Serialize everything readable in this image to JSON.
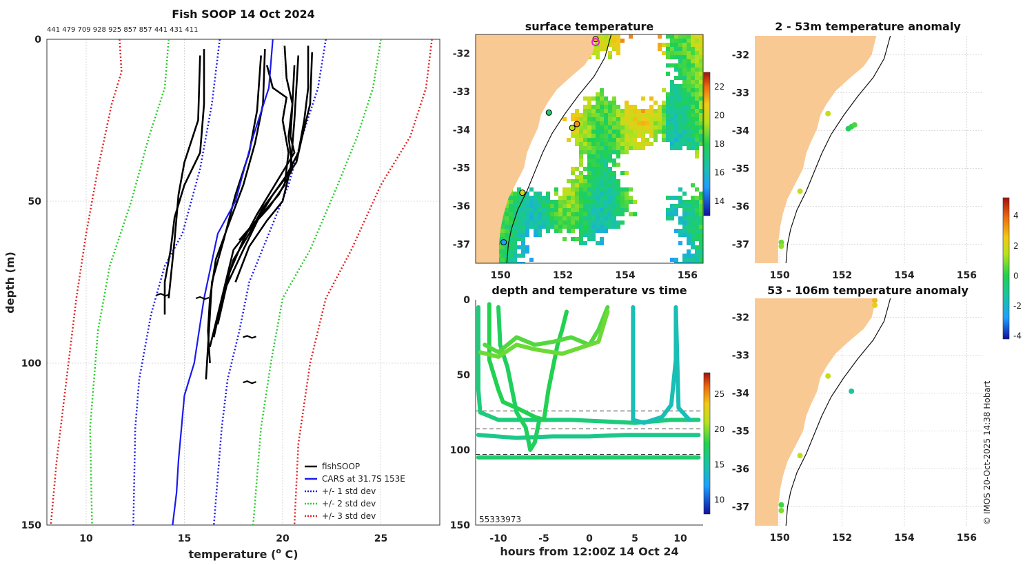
{
  "colors": {
    "land": "#f9c993",
    "red": "#e02020",
    "green": "#22cc22",
    "blue": "#1a1aee",
    "black": "#000000",
    "gray": "#cccccc"
  },
  "chart_data": [
    {
      "id": "profile",
      "type": "line",
      "title": "Fish SOOP 14 Oct 2024",
      "subtitle": "441 479 709 928 925 857 857 441 431 411",
      "xlabel": "temperature (",
      "xlabel_sup": "o",
      "xlabel_end": " C)",
      "ylabel": "depth (m)",
      "xlim": [
        8,
        28
      ],
      "ylim": [
        150,
        0
      ],
      "xticks": [
        "10",
        "15",
        "20",
        "25"
      ],
      "yticks": [
        "0",
        "50",
        "100",
        "150"
      ],
      "legend": [
        "fishSOOP",
        "CARS at 31.7S 153E",
        "+/- 1 std dev",
        "+/- 2 std dev",
        "+/- 3 std dev"
      ],
      "cars_mean": [
        [
          19.5,
          0
        ],
        [
          19.3,
          15
        ],
        [
          18.5,
          30
        ],
        [
          17.6,
          50
        ],
        [
          16.7,
          60
        ],
        [
          16.0,
          80
        ],
        [
          15.5,
          100
        ],
        [
          15.0,
          110
        ],
        [
          14.7,
          130
        ],
        [
          14.6,
          140
        ],
        [
          14.4,
          150
        ]
      ],
      "std1_minus": [
        [
          16.8,
          0
        ],
        [
          16.4,
          20
        ],
        [
          15.8,
          40
        ],
        [
          14.9,
          60
        ],
        [
          14.0,
          70
        ],
        [
          13.3,
          85
        ],
        [
          12.7,
          105
        ],
        [
          12.5,
          120
        ],
        [
          12.4,
          150
        ]
      ],
      "std1_plus": [
        [
          22.2,
          0
        ],
        [
          21.8,
          15
        ],
        [
          21.0,
          30
        ],
        [
          20.3,
          45
        ],
        [
          19.3,
          60
        ],
        [
          18.3,
          75
        ],
        [
          17.8,
          90
        ],
        [
          17.2,
          105
        ],
        [
          16.9,
          120
        ],
        [
          16.5,
          150
        ]
      ],
      "std2_minus": [
        [
          14.2,
          0
        ],
        [
          14.0,
          15
        ],
        [
          13.2,
          30
        ],
        [
          12.3,
          50
        ],
        [
          11.2,
          70
        ],
        [
          10.6,
          90
        ],
        [
          10.2,
          120
        ],
        [
          10.3,
          150
        ]
      ],
      "std2_plus": [
        [
          25.0,
          0
        ],
        [
          24.6,
          15
        ],
        [
          23.8,
          30
        ],
        [
          22.8,
          45
        ],
        [
          21.4,
          65
        ],
        [
          20.0,
          80
        ],
        [
          19.4,
          100
        ],
        [
          18.9,
          120
        ],
        [
          18.5,
          150
        ]
      ],
      "std3_minus": [
        [
          11.7,
          0
        ],
        [
          11.8,
          10
        ],
        [
          11.3,
          20
        ],
        [
          10.6,
          40
        ],
        [
          10.0,
          60
        ],
        [
          9.5,
          80
        ],
        [
          9.0,
          105
        ],
        [
          8.5,
          130
        ],
        [
          8.2,
          150
        ]
      ],
      "std3_plus": [
        [
          27.6,
          0
        ],
        [
          27.3,
          15
        ],
        [
          26.5,
          30
        ],
        [
          25.0,
          45
        ],
        [
          23.5,
          65
        ],
        [
          22.2,
          80
        ],
        [
          21.4,
          100
        ],
        [
          20.8,
          125
        ],
        [
          20.6,
          150
        ]
      ],
      "fish_profiles": [
        [
          [
            16.0,
            3
          ],
          [
            16.0,
            20
          ],
          [
            15.8,
            35
          ],
          [
            15.0,
            45
          ],
          [
            14.5,
            55
          ],
          [
            14.3,
            65
          ],
          [
            14.0,
            75
          ],
          [
            14.0,
            85
          ]
        ],
        [
          [
            15.8,
            5
          ],
          [
            15.7,
            25
          ],
          [
            15.0,
            38
          ],
          [
            14.7,
            48
          ],
          [
            14.5,
            62
          ],
          [
            14.2,
            80
          ]
        ],
        [
          [
            19.1,
            3
          ],
          [
            19.0,
            20
          ],
          [
            18.6,
            32
          ],
          [
            18.0,
            45
          ],
          [
            17.2,
            58
          ],
          [
            16.6,
            68
          ],
          [
            16.3,
            80
          ],
          [
            16.2,
            90
          ],
          [
            16.3,
            100
          ]
        ],
        [
          [
            18.9,
            5
          ],
          [
            18.7,
            22
          ],
          [
            18.3,
            35
          ],
          [
            17.6,
            48
          ],
          [
            17.0,
            62
          ],
          [
            16.4,
            75
          ],
          [
            16.2,
            95
          ],
          [
            16.1,
            105
          ]
        ],
        [
          [
            19.2,
            8
          ],
          [
            19.5,
            15
          ],
          [
            20.2,
            18
          ],
          [
            20.0,
            25
          ],
          [
            20.3,
            35
          ],
          [
            20.1,
            45
          ],
          [
            19.3,
            52
          ],
          [
            18.4,
            58
          ],
          [
            17.5,
            65
          ],
          [
            16.9,
            80
          ],
          [
            16.3,
            95
          ]
        ],
        [
          [
            20.1,
            2
          ],
          [
            20.2,
            12
          ],
          [
            20.5,
            20
          ],
          [
            20.4,
            30
          ],
          [
            20.6,
            35
          ],
          [
            20.1,
            40
          ],
          [
            19.5,
            46
          ],
          [
            18.7,
            54
          ],
          [
            18.0,
            62
          ],
          [
            17.3,
            72
          ],
          [
            16.7,
            88
          ]
        ],
        [
          [
            20.6,
            8
          ],
          [
            20.5,
            20
          ],
          [
            20.3,
            30
          ],
          [
            20.5,
            40
          ],
          [
            19.8,
            48
          ],
          [
            18.8,
            55
          ],
          [
            18.0,
            65
          ],
          [
            17.0,
            78
          ],
          [
            16.5,
            92
          ]
        ],
        [
          [
            21.5,
            4
          ],
          [
            21.4,
            20
          ],
          [
            21.0,
            30
          ],
          [
            20.7,
            38
          ],
          [
            20.0,
            44
          ],
          [
            19.0,
            52
          ],
          [
            18.3,
            60
          ],
          [
            17.5,
            68
          ],
          [
            16.9,
            80
          ]
        ],
        [
          [
            21.3,
            2
          ],
          [
            21.3,
            15
          ],
          [
            21.1,
            25
          ],
          [
            20.8,
            35
          ],
          [
            20.2,
            42
          ],
          [
            19.5,
            48
          ],
          [
            18.8,
            55
          ],
          [
            17.8,
            62
          ]
        ],
        [
          [
            20.8,
            5
          ],
          [
            20.6,
            25
          ],
          [
            20.4,
            40
          ],
          [
            20.0,
            50
          ],
          [
            19.2,
            56
          ],
          [
            18.3,
            64
          ],
          [
            17.6,
            75
          ]
        ]
      ],
      "fish_blobs": [
        [
          18.3,
          92
        ],
        [
          18.3,
          106
        ],
        [
          15.9,
          80
        ],
        [
          13.9,
          79
        ]
      ]
    },
    {
      "id": "sst",
      "type": "heatmap",
      "title": "surface temperature",
      "xticks": [
        "150",
        "152",
        "154",
        "156"
      ],
      "yticks": [
        "-32",
        "-33",
        "-34",
        "-35",
        "-36",
        "-37"
      ],
      "xlim": [
        149.2,
        156.5
      ],
      "ylim": [
        -37.5,
        -31.5
      ],
      "colorbar": {
        "range": [
          13,
          23
        ],
        "ticks": [
          "14",
          "16",
          "18",
          "20",
          "22"
        ]
      },
      "stations": [
        {
          "lon": 153.05,
          "lat": -31.62,
          "temp": 21.0
        },
        {
          "lon": 151.55,
          "lat": -33.55,
          "temp": 17.5
        },
        {
          "lon": 152.3,
          "lat": -33.95,
          "temp": 19.5
        },
        {
          "lon": 152.45,
          "lat": -33.85,
          "temp": 21.5
        },
        {
          "lon": 150.7,
          "lat": -35.65,
          "temp": 20.0
        },
        {
          "lon": 150.1,
          "lat": -36.95,
          "temp": 15.0
        }
      ],
      "ship": {
        "lon": 153.05,
        "lat": -31.7
      }
    },
    {
      "id": "anom_shallow",
      "type": "scatter",
      "title": "2 - 53m temperature anomaly",
      "xticks": [
        "150",
        "152",
        "154",
        "156"
      ],
      "yticks": [
        "-32",
        "-33",
        "-34",
        "-35",
        "-36",
        "-37"
      ],
      "xlim": [
        149.2,
        156.5
      ],
      "ylim": [
        -37.5,
        -31.5
      ],
      "points": [
        {
          "lon": 151.55,
          "lat": -33.55,
          "anom": 2.2
        },
        {
          "lon": 152.2,
          "lat": -33.95,
          "anom": 0.2
        },
        {
          "lon": 152.3,
          "lat": -33.9,
          "anom": 0.6
        },
        {
          "lon": 152.4,
          "lat": -33.85,
          "anom": 0.9
        },
        {
          "lon": 150.65,
          "lat": -35.6,
          "anom": 2.3
        },
        {
          "lon": 150.05,
          "lat": -36.95,
          "anom": 1.2
        },
        {
          "lon": 150.05,
          "lat": -37.05,
          "anom": 1.6
        }
      ]
    },
    {
      "id": "anom_deep",
      "type": "scatter",
      "title": "53 - 106m temperature anomaly",
      "xticks": [
        "150",
        "152",
        "154",
        "156"
      ],
      "yticks": [
        "-32",
        "-33",
        "-34",
        "-35",
        "-36",
        "-37"
      ],
      "xlim": [
        149.2,
        156.5
      ],
      "ylim": [
        -37.5,
        -31.5
      ],
      "points": [
        {
          "lon": 153.05,
          "lat": -31.55,
          "anom": 3.3
        },
        {
          "lon": 153.05,
          "lat": -31.68,
          "anom": 3.0
        },
        {
          "lon": 151.55,
          "lat": -33.55,
          "anom": 2.2
        },
        {
          "lon": 152.3,
          "lat": -33.95,
          "anom": -0.8
        },
        {
          "lon": 150.65,
          "lat": -35.65,
          "anom": 2.0
        },
        {
          "lon": 150.05,
          "lat": -36.95,
          "anom": 0.8
        },
        {
          "lon": 150.05,
          "lat": -37.1,
          "anom": 1.4
        }
      ],
      "colorbar": {
        "range": [
          -4.2,
          5.2
        ],
        "ticks": [
          "-4",
          "-2",
          "0",
          "2",
          "4"
        ]
      }
    },
    {
      "id": "depth_time",
      "type": "scatter",
      "title": "depth and temperature vs time",
      "xlabel": "hours from 12:00Z 14 Oct 24",
      "xlim": [
        -12.5,
        12.5
      ],
      "ylim": [
        150,
        0
      ],
      "xticks": [
        "-10",
        "-5",
        "0",
        "5",
        "10"
      ],
      "yticks": [
        "0",
        "50",
        "100",
        "150"
      ],
      "bottom_label": "55333973",
      "dashed_depths": [
        74,
        86,
        103
      ],
      "colorbar": {
        "range": [
          8,
          28
        ],
        "ticks": [
          "10",
          "15",
          "20",
          "25"
        ]
      },
      "traces": [
        {
          "temp": 16.5,
          "pts": [
            [
              -12.2,
              5
            ],
            [
              -12.2,
              60
            ],
            [
              -12,
              75
            ],
            [
              -10,
              80
            ],
            [
              -6,
              80
            ],
            [
              -2,
              80
            ],
            [
              5,
              82
            ],
            [
              9,
              80
            ],
            [
              12,
              80
            ]
          ]
        },
        {
          "temp": 16.0,
          "pts": [
            [
              -12.2,
              90
            ],
            [
              -8,
              92
            ],
            [
              -4,
              91
            ],
            [
              0,
              91
            ],
            [
              4,
              90
            ],
            [
              8,
              90
            ],
            [
              12,
              90
            ]
          ]
        },
        {
          "temp": 17.0,
          "pts": [
            [
              -12.2,
              105
            ],
            [
              -6,
              105
            ],
            [
              0,
              105
            ],
            [
              6,
              105
            ],
            [
              12,
              105
            ]
          ]
        },
        {
          "temp": 18.0,
          "pts": [
            [
              -11,
              3
            ],
            [
              -11,
              40
            ],
            [
              -10,
              60
            ],
            [
              -9.5,
              68
            ],
            [
              -8,
              72
            ],
            [
              -6,
              78
            ],
            [
              -5,
              80
            ],
            [
              -4.5,
              60
            ],
            [
              -4,
              45
            ],
            [
              -3.5,
              30
            ],
            [
              -3,
              20
            ],
            [
              -2.5,
              8
            ]
          ]
        },
        {
          "temp": 17.5,
          "pts": [
            [
              -10,
              5
            ],
            [
              -9.8,
              30
            ],
            [
              -9,
              45
            ],
            [
              -8.5,
              60
            ],
            [
              -8,
              75
            ],
            [
              -7,
              85
            ],
            [
              -6.5,
              100
            ],
            [
              -6,
              95
            ],
            [
              -5.5,
              80
            ]
          ]
        },
        {
          "temp": 19.0,
          "pts": [
            [
              -11.5,
              30
            ],
            [
              -10,
              35
            ],
            [
              -8,
              25
            ],
            [
              -6,
              30
            ],
            [
              -4,
              28
            ],
            [
              -2,
              25
            ],
            [
              0,
              30
            ],
            [
              1,
              20
            ],
            [
              2,
              5
            ]
          ]
        },
        {
          "temp": 19.5,
          "pts": [
            [
              -12,
              35
            ],
            [
              -10,
              38
            ],
            [
              -8,
              30
            ],
            [
              -6,
              33
            ],
            [
              -3,
              36
            ],
            [
              -1,
              32
            ],
            [
              1,
              28
            ],
            [
              2,
              8
            ]
          ]
        },
        {
          "temp": 14.5,
          "pts": [
            [
              4.8,
              5
            ],
            [
              4.8,
              80
            ],
            [
              6,
              82
            ],
            [
              8,
              78
            ],
            [
              9,
              70
            ],
            [
              9.5,
              40
            ],
            [
              9.5,
              5
            ],
            [
              9.8,
              72
            ],
            [
              11,
              80
            ]
          ]
        }
      ]
    }
  ],
  "footer": "© IMOS 20-Oct-2025 14:38 Hobart"
}
